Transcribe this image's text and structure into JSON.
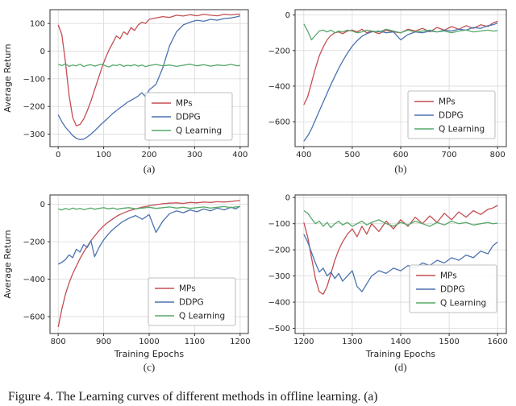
{
  "caption": "Figure 4.  The Learning curves of different methods in offline learning.  (a)",
  "chart_data": [
    {
      "type": "line",
      "sublabel": "(a)",
      "title": "",
      "xlabel": "",
      "ylabel": "Average Return",
      "xlim": [
        -18,
        418
      ],
      "ylim": [
        -345,
        150
      ],
      "xticks": [
        0,
        100,
        200,
        300,
        400
      ],
      "yticks": [
        100,
        0,
        -100,
        -200,
        -300
      ],
      "grid": true,
      "legend_position": "lower right",
      "legend": {
        "right": 20,
        "bottom": 8
      },
      "x": [
        0,
        8,
        16,
        24,
        32,
        40,
        48,
        56,
        64,
        72,
        80,
        88,
        96,
        104,
        112,
        120,
        128,
        136,
        144,
        152,
        160,
        168,
        176,
        184,
        192,
        200,
        215,
        230,
        245,
        260,
        275,
        290,
        305,
        320,
        335,
        350,
        365,
        380,
        395,
        400
      ],
      "series": [
        {
          "name": "MPs",
          "color": "#c44e52",
          "values": [
            95,
            60,
            -40,
            -160,
            -240,
            -270,
            -265,
            -245,
            -215,
            -180,
            -140,
            -100,
            -60,
            -25,
            5,
            30,
            55,
            45,
            70,
            60,
            85,
            75,
            95,
            105,
            100,
            115,
            120,
            125,
            122,
            130,
            127,
            132,
            128,
            133,
            130,
            128,
            133,
            131,
            134,
            133
          ]
        },
        {
          "name": "DDPG",
          "color": "#4c72b0",
          "values": [
            -230,
            -255,
            -275,
            -290,
            -305,
            -315,
            -320,
            -318,
            -310,
            -300,
            -288,
            -275,
            -262,
            -250,
            -238,
            -225,
            -215,
            -205,
            -195,
            -185,
            -178,
            -170,
            -162,
            -150,
            -165,
            -140,
            -120,
            -60,
            20,
            70,
            95,
            105,
            112,
            108,
            115,
            112,
            118,
            120,
            125,
            128
          ]
        },
        {
          "name": "Q Learning",
          "color": "#55a868",
          "values": [
            -48,
            -52,
            -46,
            -55,
            -50,
            -53,
            -47,
            -56,
            -51,
            -49,
            -54,
            -50,
            -47,
            -53,
            -57,
            -50,
            -52,
            -48,
            -55,
            -51,
            -53,
            -49,
            -54,
            -50,
            -56,
            -52,
            -48,
            -53,
            -50,
            -55,
            -51,
            -47,
            -53,
            -49,
            -54,
            -50,
            -52,
            -48,
            -53,
            -51
          ]
        }
      ]
    },
    {
      "type": "line",
      "sublabel": "(b)",
      "title": "",
      "xlabel": "",
      "ylabel": "",
      "xlim": [
        382,
        818
      ],
      "ylim": [
        -740,
        30
      ],
      "xticks": [
        400,
        500,
        600,
        700,
        800
      ],
      "yticks": [
        0,
        -200,
        -400,
        -600
      ],
      "grid": true,
      "legend_position": "lower right",
      "legend": {
        "right": 14,
        "bottom": 10
      },
      "x": [
        400,
        408,
        416,
        424,
        432,
        440,
        448,
        456,
        464,
        472,
        480,
        490,
        500,
        510,
        520,
        530,
        540,
        555,
        570,
        585,
        600,
        615,
        630,
        645,
        660,
        675,
        690,
        705,
        720,
        735,
        750,
        765,
        780,
        790,
        800
      ],
      "series": [
        {
          "name": "MPs",
          "color": "#c44e52",
          "values": [
            -505,
            -460,
            -380,
            -300,
            -230,
            -180,
            -140,
            -115,
            -100,
            -95,
            -105,
            -90,
            -85,
            -95,
            -80,
            -100,
            -90,
            -105,
            -85,
            -95,
            -100,
            -80,
            -90,
            -75,
            -95,
            -70,
            -85,
            -65,
            -80,
            -60,
            -75,
            -55,
            -65,
            -45,
            -35
          ]
        },
        {
          "name": "DDPG",
          "color": "#4c72b0",
          "values": [
            -710,
            -680,
            -640,
            -590,
            -540,
            -490,
            -440,
            -390,
            -345,
            -300,
            -260,
            -215,
            -175,
            -145,
            -120,
            -105,
            -95,
            -90,
            -100,
            -95,
            -140,
            -110,
            -95,
            -100,
            -90,
            -95,
            -85,
            -90,
            -80,
            -85,
            -70,
            -75,
            -60,
            -55,
            -45
          ]
        },
        {
          "name": "Q Learning",
          "color": "#55a868",
          "values": [
            -50,
            -90,
            -140,
            -115,
            -90,
            -85,
            -95,
            -85,
            -100,
            -90,
            -95,
            -85,
            -90,
            -100,
            -95,
            -85,
            -90,
            -95,
            -80,
            -90,
            -100,
            -85,
            -95,
            -90,
            -85,
            -95,
            -90,
            -100,
            -90,
            -85,
            -95,
            -90,
            -85,
            -90,
            -88
          ]
        }
      ]
    },
    {
      "type": "line",
      "sublabel": "(c)",
      "title": "",
      "xlabel": "Training Epochs",
      "ylabel": "Average Return",
      "xlim": [
        782,
        1218
      ],
      "ylim": [
        -690,
        50
      ],
      "xticks": [
        800,
        900,
        1000,
        1100,
        1200
      ],
      "yticks": [
        0,
        -200,
        -400,
        -600
      ],
      "grid": true,
      "legend_position": "lower right",
      "legend": {
        "right": 16,
        "bottom": 10
      },
      "x": [
        800,
        808,
        816,
        824,
        832,
        840,
        848,
        856,
        864,
        872,
        880,
        890,
        900,
        910,
        920,
        930,
        940,
        955,
        970,
        985,
        1000,
        1015,
        1030,
        1045,
        1060,
        1075,
        1090,
        1105,
        1120,
        1135,
        1150,
        1165,
        1180,
        1190,
        1200
      ],
      "series": [
        {
          "name": "MPs",
          "color": "#c44e52",
          "values": [
            -655,
            -560,
            -480,
            -420,
            -370,
            -330,
            -290,
            -255,
            -225,
            -195,
            -170,
            -140,
            -115,
            -95,
            -78,
            -62,
            -50,
            -35,
            -25,
            -15,
            -8,
            -2,
            3,
            6,
            8,
            5,
            10,
            8,
            12,
            10,
            14,
            12,
            15,
            18,
            20
          ]
        },
        {
          "name": "DDPG",
          "color": "#4c72b0",
          "values": [
            -320,
            -310,
            -295,
            -270,
            -285,
            -240,
            -255,
            -215,
            -230,
            -195,
            -280,
            -230,
            -190,
            -160,
            -135,
            -115,
            -95,
            -75,
            -60,
            -80,
            -55,
            -150,
            -90,
            -50,
            -35,
            -45,
            -30,
            -40,
            -25,
            -35,
            -20,
            -30,
            -15,
            -25,
            -10
          ]
        },
        {
          "name": "Q Learning",
          "color": "#55a868",
          "values": [
            -25,
            -30,
            -22,
            -28,
            -20,
            -26,
            -22,
            -28,
            -24,
            -20,
            -26,
            -22,
            -18,
            -24,
            -20,
            -26,
            -22,
            -18,
            -24,
            -20,
            -16,
            -22,
            -18,
            -14,
            -20,
            -16,
            -22,
            -18,
            -14,
            -20,
            -16,
            -12,
            -18,
            -14,
            -12
          ]
        }
      ]
    },
    {
      "type": "line",
      "sublabel": "(d)",
      "title": "",
      "xlabel": "Training Epochs",
      "ylabel": "",
      "xlim": [
        1182,
        1618
      ],
      "ylim": [
        -520,
        10
      ],
      "xticks": [
        1200,
        1300,
        1400,
        1500,
        1600
      ],
      "yticks": [
        0,
        -100,
        -200,
        -300,
        -400,
        -500
      ],
      "grid": true,
      "legend_position": "lower right",
      "legend": {
        "right": 12,
        "bottom": 26
      },
      "x": [
        1200,
        1208,
        1216,
        1224,
        1232,
        1240,
        1248,
        1256,
        1264,
        1272,
        1280,
        1290,
        1300,
        1310,
        1320,
        1330,
        1340,
        1355,
        1370,
        1385,
        1400,
        1415,
        1430,
        1445,
        1460,
        1475,
        1490,
        1505,
        1520,
        1535,
        1550,
        1565,
        1580,
        1590,
        1600
      ],
      "series": [
        {
          "name": "MPs",
          "color": "#c44e52",
          "values": [
            -95,
            -150,
            -230,
            -310,
            -360,
            -370,
            -340,
            -290,
            -240,
            -200,
            -170,
            -140,
            -120,
            -150,
            -110,
            -140,
            -100,
            -130,
            -90,
            -120,
            -85,
            -110,
            -75,
            -100,
            -70,
            -95,
            -60,
            -85,
            -55,
            -75,
            -50,
            -65,
            -45,
            -40,
            -30
          ]
        },
        {
          "name": "DDPG",
          "color": "#4c72b0",
          "values": [
            -140,
            -170,
            -210,
            -250,
            -285,
            -270,
            -300,
            -285,
            -310,
            -290,
            -320,
            -300,
            -280,
            -340,
            -360,
            -330,
            -300,
            -280,
            -290,
            -270,
            -280,
            -260,
            -270,
            -250,
            -260,
            -240,
            -250,
            -230,
            -240,
            -220,
            -230,
            -205,
            -215,
            -185,
            -170
          ]
        },
        {
          "name": "Q Learning",
          "color": "#55a868",
          "values": [
            -50,
            -60,
            -80,
            -100,
            -90,
            -110,
            -95,
            -115,
            -100,
            -90,
            -105,
            -95,
            -110,
            -100,
            -90,
            -105,
            -95,
            -85,
            -100,
            -110,
            -95,
            -105,
            -90,
            -100,
            -110,
            -95,
            -105,
            -90,
            -100,
            -95,
            -105,
            -100,
            -95,
            -100,
            -98
          ]
        }
      ]
    }
  ]
}
